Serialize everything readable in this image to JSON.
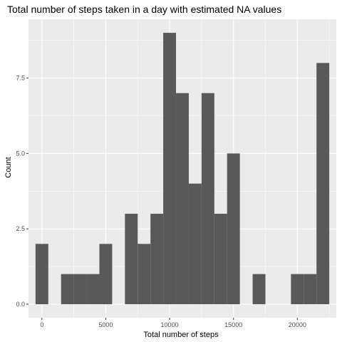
{
  "chart_data": {
    "type": "bar",
    "title": "Total number of steps taken in a day with estimated NA values",
    "xlabel": "Total number of steps",
    "ylabel": "Count",
    "binwidth": 1000,
    "bins": [
      {
        "x": 0,
        "count": 2
      },
      {
        "x": 2000,
        "count": 1
      },
      {
        "x": 3000,
        "count": 1
      },
      {
        "x": 4000,
        "count": 1
      },
      {
        "x": 5000,
        "count": 2
      },
      {
        "x": 7000,
        "count": 3
      },
      {
        "x": 8000,
        "count": 2
      },
      {
        "x": 9000,
        "count": 3
      },
      {
        "x": 10000,
        "count": 9
      },
      {
        "x": 11000,
        "count": 7
      },
      {
        "x": 12000,
        "count": 4
      },
      {
        "x": 13000,
        "count": 7
      },
      {
        "x": 14000,
        "count": 3
      },
      {
        "x": 15000,
        "count": 5
      },
      {
        "x": 17000,
        "count": 1
      },
      {
        "x": 20000,
        "count": 1
      },
      {
        "x": 21000,
        "count": 1
      },
      {
        "x": 22000,
        "count": 8
      }
    ],
    "xlim": [
      -1050,
      23050
    ],
    "ylim": [
      -0.45,
      9.45
    ],
    "x_ticks": [
      0,
      5000,
      10000,
      15000,
      20000
    ],
    "x_tick_labels": [
      "0",
      "5000",
      "10000",
      "15000",
      "20000"
    ],
    "y_ticks": [
      0,
      2.5,
      5,
      7.5
    ],
    "y_tick_labels": [
      "0.0",
      "2.5",
      "5.0",
      "7.5"
    ],
    "grid": true,
    "colors": {
      "panel": "#ebebeb",
      "grid_major": "#ffffff",
      "bar": "#595959",
      "tick_text": "#4d4d4d",
      "tick_mark": "#333333"
    }
  }
}
